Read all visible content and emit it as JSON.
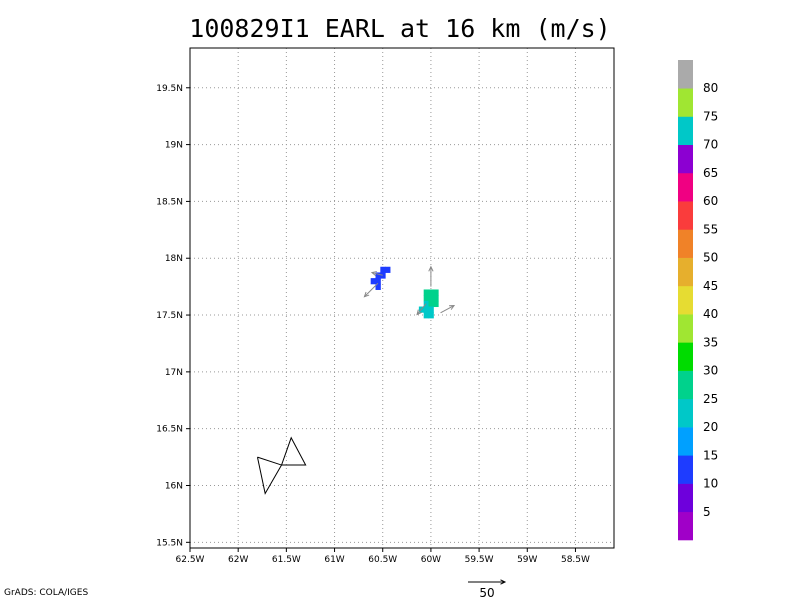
{
  "title": "100829I1 EARL at 16 km (m/s)",
  "credit": "GrADS: COLA/IGES",
  "chart_data": {
    "type": "heatmap",
    "title": "100829I1 EARL at 16 km (m/s)",
    "xlim": [
      -62.5,
      -58.1
    ],
    "ylim": [
      15.45,
      19.85
    ],
    "x_ticks": [
      -62.5,
      -62,
      -61.5,
      -61,
      -60.5,
      -60,
      -59.5,
      -59,
      -58.5
    ],
    "x_tick_labels": [
      "62.5W",
      "62W",
      "61.5W",
      "61W",
      "60.5W",
      "60W",
      "59.5W",
      "59W",
      "58.5W"
    ],
    "y_ticks": [
      15.5,
      16,
      16.5,
      17,
      17.5,
      18,
      18.5,
      19,
      19.5
    ],
    "y_tick_labels": [
      "15.5N",
      "16N",
      "16.5N",
      "17N",
      "17.5N",
      "18N",
      "18.5N",
      "19N",
      "19.5N"
    ],
    "grid": true,
    "colorbar": {
      "labels": [
        "5",
        "10",
        "15",
        "20",
        "25",
        "30",
        "35",
        "40",
        "45",
        "50",
        "55",
        "60",
        "65",
        "70",
        "75",
        "80"
      ],
      "colors": [
        "#a000c8",
        "#6e00dc",
        "#1e3cff",
        "#00a0ff",
        "#00c8c8",
        "#00d28c",
        "#00dc00",
        "#a0e632",
        "#e6dc32",
        "#e6af2d",
        "#f08228",
        "#fa3c3c",
        "#f00082",
        "#8c00d2",
        "#00c8c8",
        "#a0e632",
        "#aaaaaa"
      ]
    },
    "cells": [
      {
        "lon": -60.5,
        "lat": 17.9,
        "value": 12
      },
      {
        "lon": -60.45,
        "lat": 17.9,
        "value": 12
      },
      {
        "lon": -60.55,
        "lat": 17.85,
        "value": 12
      },
      {
        "lon": -60.5,
        "lat": 17.85,
        "value": 12
      },
      {
        "lon": -60.6,
        "lat": 17.8,
        "value": 12
      },
      {
        "lon": -60.55,
        "lat": 17.8,
        "value": 12
      },
      {
        "lon": -60.55,
        "lat": 17.75,
        "value": 12
      },
      {
        "lon": -60.05,
        "lat": 17.7,
        "value": 25
      },
      {
        "lon": -60.0,
        "lat": 17.7,
        "value": 25
      },
      {
        "lon": -59.95,
        "lat": 17.7,
        "value": 28
      },
      {
        "lon": -60.05,
        "lat": 17.65,
        "value": 25
      },
      {
        "lon": -60.0,
        "lat": 17.65,
        "value": 27
      },
      {
        "lon": -59.95,
        "lat": 17.65,
        "value": 28
      },
      {
        "lon": -60.05,
        "lat": 17.6,
        "value": 23
      },
      {
        "lon": -60.0,
        "lat": 17.6,
        "value": 25
      },
      {
        "lon": -59.95,
        "lat": 17.6,
        "value": 26
      },
      {
        "lon": -60.1,
        "lat": 17.55,
        "value": 23
      },
      {
        "lon": -60.05,
        "lat": 17.55,
        "value": 23
      },
      {
        "lon": -60.0,
        "lat": 17.55,
        "value": 23
      },
      {
        "lon": -60.05,
        "lat": 17.5,
        "value": 23
      },
      {
        "lon": -60.0,
        "lat": 17.5,
        "value": 23
      }
    ],
    "vectors": [
      {
        "lon": -60.55,
        "lat": 17.78,
        "u": -15,
        "v": -15
      },
      {
        "lon": -60.5,
        "lat": 17.85,
        "u": -12,
        "v": 3
      },
      {
        "lon": -60.0,
        "lat": 17.75,
        "u": 0,
        "v": 22
      },
      {
        "lon": -59.9,
        "lat": 17.52,
        "u": 15,
        "v": 8
      },
      {
        "lon": -60.05,
        "lat": 17.6,
        "u": -10,
        "v": -12
      }
    ],
    "reference_vector": {
      "label": "50",
      "value": 50
    },
    "polylines": [
      [
        [
          -61.8,
          16.25
        ],
        [
          -61.55,
          16.18
        ],
        [
          -61.45,
          16.42
        ],
        [
          -61.3,
          16.18
        ],
        [
          -61.55,
          16.18
        ],
        [
          -61.72,
          15.93
        ],
        [
          -61.8,
          16.25
        ]
      ]
    ]
  }
}
